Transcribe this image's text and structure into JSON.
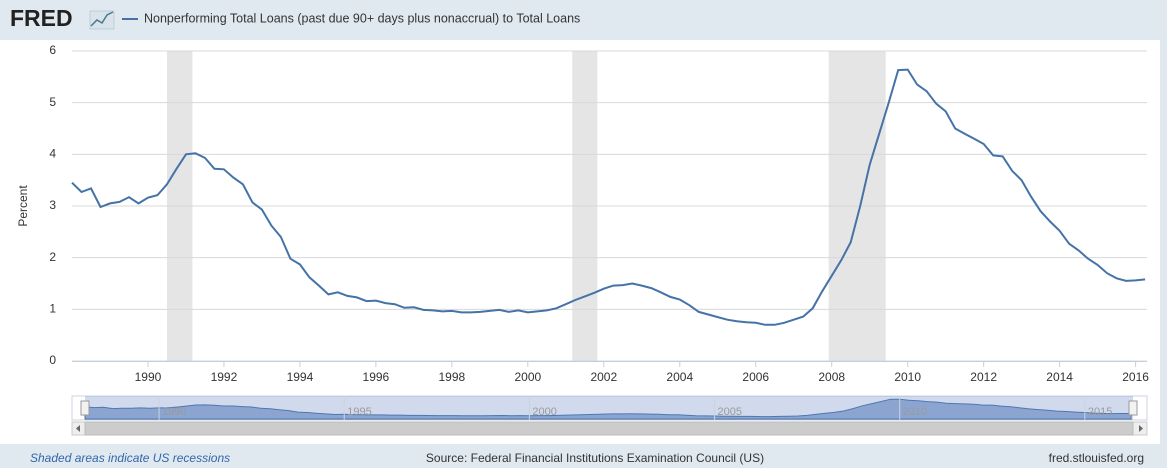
{
  "header": {
    "logo": "FRED"
  },
  "chart_data": {
    "type": "line",
    "ylabel": "Percent",
    "x": [
      1988,
      1988.25,
      1988.5,
      1988.75,
      1989,
      1989.25,
      1989.5,
      1989.75,
      1990,
      1990.25,
      1990.5,
      1990.75,
      1991,
      1991.25,
      1991.5,
      1991.75,
      1992,
      1992.25,
      1992.5,
      1992.75,
      1993,
      1993.25,
      1993.5,
      1993.75,
      1994,
      1994.25,
      1994.5,
      1994.75,
      1995,
      1995.25,
      1995.5,
      1995.75,
      1996,
      1996.25,
      1996.5,
      1996.75,
      1997,
      1997.25,
      1997.5,
      1997.75,
      1998,
      1998.25,
      1998.5,
      1998.75,
      1999,
      1999.25,
      1999.5,
      1999.75,
      2000,
      2000.25,
      2000.5,
      2000.75,
      2001,
      2001.25,
      2001.5,
      2001.75,
      2002,
      2002.25,
      2002.5,
      2002.75,
      2003,
      2003.25,
      2003.5,
      2003.75,
      2004,
      2004.25,
      2004.5,
      2004.75,
      2005,
      2005.25,
      2005.5,
      2005.75,
      2006,
      2006.25,
      2006.5,
      2006.75,
      2007,
      2007.25,
      2007.5,
      2007.75,
      2008,
      2008.25,
      2008.5,
      2008.75,
      2009,
      2009.25,
      2009.5,
      2009.75,
      2010,
      2010.25,
      2010.5,
      2010.75,
      2011,
      2011.25,
      2011.5,
      2011.75,
      2012,
      2012.25,
      2012.5,
      2012.75,
      2013,
      2013.25,
      2013.5,
      2013.75,
      2014,
      2014.25,
      2014.5,
      2014.75,
      2015,
      2015.25,
      2015.5,
      2015.75,
      2016,
      2016.25
    ],
    "series": [
      {
        "name": "Nonperforming Total Loans (past due 90+ days plus nonaccrual) to Total Loans",
        "color": "#4572a7",
        "values": [
          3.45,
          3.27,
          3.34,
          2.98,
          3.05,
          3.08,
          3.17,
          3.05,
          3.16,
          3.21,
          3.42,
          3.72,
          4.0,
          4.02,
          3.93,
          3.72,
          3.71,
          3.55,
          3.42,
          3.07,
          2.93,
          2.62,
          2.4,
          1.98,
          1.87,
          1.62,
          1.46,
          1.29,
          1.33,
          1.26,
          1.23,
          1.16,
          1.17,
          1.12,
          1.1,
          1.03,
          1.04,
          0.99,
          0.98,
          0.96,
          0.97,
          0.94,
          0.94,
          0.95,
          0.97,
          0.99,
          0.95,
          0.98,
          0.94,
          0.96,
          0.98,
          1.02,
          1.1,
          1.18,
          1.25,
          1.32,
          1.4,
          1.46,
          1.47,
          1.5,
          1.46,
          1.41,
          1.33,
          1.24,
          1.19,
          1.08,
          0.95,
          0.9,
          0.85,
          0.8,
          0.77,
          0.75,
          0.74,
          0.7,
          0.7,
          0.74,
          0.8,
          0.86,
          1.02,
          1.35,
          1.65,
          1.95,
          2.3,
          3.0,
          3.8,
          4.4,
          5.0,
          5.63,
          5.64,
          5.35,
          5.22,
          4.98,
          4.83,
          4.5,
          4.4,
          4.3,
          4.2,
          3.98,
          3.96,
          3.68,
          3.5,
          3.18,
          2.9,
          2.7,
          2.52,
          2.27,
          2.14,
          1.98,
          1.86,
          1.7,
          1.6,
          1.55,
          1.56,
          1.58
        ]
      }
    ],
    "xlim": [
      1988,
      2016.3
    ],
    "xticks": [
      1990,
      1992,
      1994,
      1996,
      1998,
      2000,
      2002,
      2004,
      2006,
      2008,
      2010,
      2012,
      2014,
      2016
    ],
    "ylim": [
      0,
      6
    ],
    "yticks": [
      0,
      1,
      2,
      3,
      4,
      5,
      6
    ],
    "grid": true,
    "recessions": [
      [
        1990.5,
        1991.17
      ],
      [
        2001.17,
        2001.83
      ],
      [
        2007.92,
        2009.42
      ]
    ],
    "recession_color": "#e5e5e5",
    "navigator_xticks": [
      1990,
      1995,
      2000,
      2005,
      2010,
      2015
    ]
  },
  "footer": {
    "note": "Shaded areas indicate US recessions",
    "source": "Source: Federal Financial Institutions Examination Council (US)",
    "site": "fred.stlouisfed.org"
  }
}
